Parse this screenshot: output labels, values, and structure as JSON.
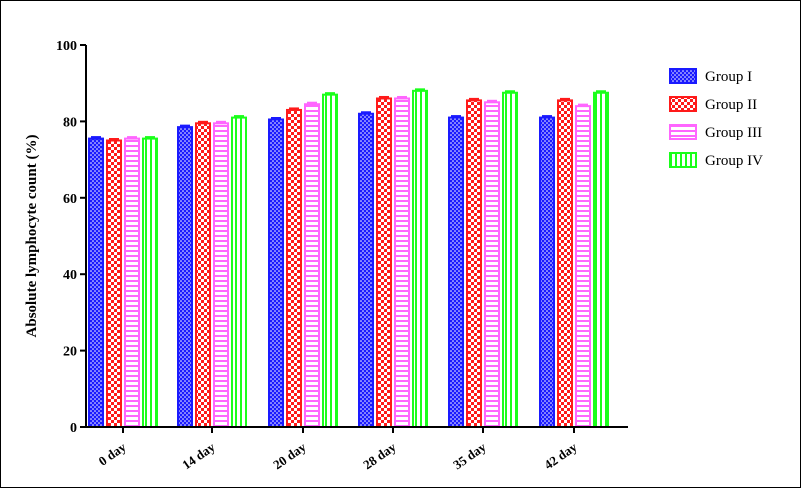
{
  "chart_data": {
    "type": "bar",
    "title": "",
    "xlabel": "",
    "ylabel": "Absolute lymphocyte count (%)",
    "ylim": [
      0,
      100
    ],
    "yticks": [
      0,
      20,
      40,
      60,
      80,
      100
    ],
    "grid": false,
    "legend_position": "top-right",
    "categories": [
      "0 day",
      "14 day",
      "20 day",
      "28 day",
      "35 day",
      "42 day"
    ],
    "series": [
      {
        "name": "Group I",
        "color": "#1a1aff",
        "pattern": "dots",
        "values": [
          75.5,
          78.5,
          80.5,
          82.0,
          81.0,
          81.0
        ]
      },
      {
        "name": "Group II",
        "color": "#ff1a1a",
        "pattern": "checker",
        "values": [
          75.0,
          79.5,
          83.0,
          86.0,
          85.5,
          85.5
        ]
      },
      {
        "name": "Group III",
        "color": "#ff66ff",
        "pattern": "horizontal",
        "values": [
          75.5,
          79.5,
          84.5,
          86.0,
          85.0,
          84.0
        ]
      },
      {
        "name": "Group IV",
        "color": "#1aff1a",
        "pattern": "vertical",
        "values": [
          75.5,
          81.0,
          87.0,
          88.0,
          87.5,
          87.5
        ]
      }
    ]
  }
}
